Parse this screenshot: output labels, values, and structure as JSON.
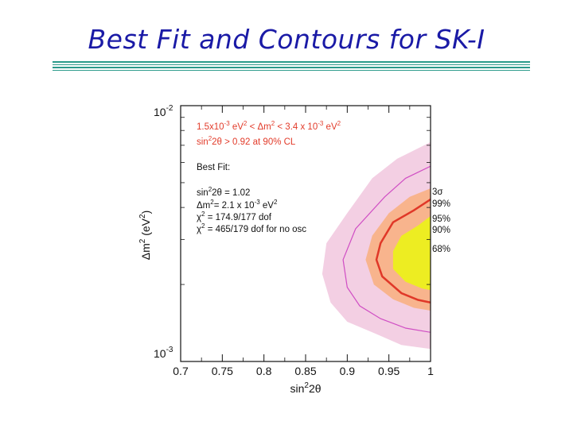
{
  "slide": {
    "title": "Best Fit and Contours for SK-I"
  },
  "chart_data": {
    "type": "contour",
    "xlabel": "sin²2θ",
    "ylabel": "Δm² (eV²)",
    "xlim": [
      0.7,
      1.0
    ],
    "ylim": [
      0.001,
      0.01
    ],
    "yscale": "log",
    "x_ticks": [
      "0.7",
      "0.75",
      "0.8",
      "0.85",
      "0.9",
      "0.95",
      "1"
    ],
    "y_ticks": [
      {
        "base": "10",
        "exp": "-2",
        "value": 0.01
      },
      {
        "base": "10",
        "exp": "-3",
        "value": 0.001
      }
    ],
    "annotation_red": [
      "1.5x10-3 eV2 < Δm2 < 3.4 x 10-3 eV2",
      "sin22θ > 0.92    at 90% CL"
    ],
    "best_fit_label": "Best Fit:",
    "best_fit_lines": [
      "sin22θ = 1.02",
      "Δm2= 2.1 x 10-3 eV2",
      "χ2 = 174.9/177 dof",
      "χ2 = 465/179 dof for no osc"
    ],
    "contour_levels": [
      {
        "label": "3σ",
        "color": "#f3cfe3"
      },
      {
        "label": "99%",
        "color": "#d04ec4"
      },
      {
        "label": "95%",
        "color": "#f8b48d"
      },
      {
        "label": "90%",
        "color": "#e03828"
      },
      {
        "label": "68%",
        "color": "#eded22"
      }
    ],
    "contours": [
      {
        "level": "3σ",
        "points": [
          [
            1.0,
            0.0072
          ],
          [
            0.96,
            0.0062
          ],
          [
            0.93,
            0.0052
          ],
          [
            0.9,
            0.0038
          ],
          [
            0.875,
            0.0029
          ],
          [
            0.87,
            0.0022
          ],
          [
            0.88,
            0.0017
          ],
          [
            0.9,
            0.00143
          ],
          [
            0.935,
            0.00128
          ],
          [
            0.965,
            0.00116
          ],
          [
            1.0,
            0.00112
          ]
        ]
      },
      {
        "level": "99%",
        "points": [
          [
            1.0,
            0.0058
          ],
          [
            0.97,
            0.0052
          ],
          [
            0.945,
            0.0044
          ],
          [
            0.91,
            0.0033
          ],
          [
            0.895,
            0.0025
          ],
          [
            0.9,
            0.00195
          ],
          [
            0.915,
            0.00165
          ],
          [
            0.94,
            0.00147
          ],
          [
            0.97,
            0.00135
          ],
          [
            1.0,
            0.0013
          ]
        ]
      },
      {
        "level": "95%",
        "points": [
          [
            1.0,
            0.00475
          ],
          [
            0.975,
            0.0044
          ],
          [
            0.95,
            0.0038
          ],
          [
            0.93,
            0.0031
          ],
          [
            0.922,
            0.0025
          ],
          [
            0.932,
            0.002
          ],
          [
            0.955,
            0.00175
          ],
          [
            0.98,
            0.00162
          ],
          [
            1.0,
            0.00158
          ]
        ]
      },
      {
        "level": "90%",
        "points": [
          [
            1.0,
            0.0043
          ],
          [
            0.98,
            0.0039
          ],
          [
            0.955,
            0.0035
          ],
          [
            0.94,
            0.0029
          ],
          [
            0.935,
            0.0025
          ],
          [
            0.942,
            0.00215
          ],
          [
            0.965,
            0.00185
          ],
          [
            0.985,
            0.00174
          ],
          [
            1.0,
            0.0017
          ]
        ]
      },
      {
        "level": "68%",
        "points": [
          [
            1.0,
            0.0037
          ],
          [
            0.985,
            0.0034
          ],
          [
            0.965,
            0.0031
          ],
          [
            0.955,
            0.0027
          ],
          [
            0.955,
            0.0023
          ],
          [
            0.97,
            0.00205
          ],
          [
            0.99,
            0.00193
          ],
          [
            1.0,
            0.0019
          ]
        ]
      }
    ],
    "grid": false
  }
}
